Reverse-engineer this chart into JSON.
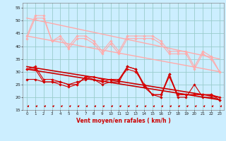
{
  "title": "",
  "xlabel": "Vent moyen/en rafales ( km/h )",
  "xlim": [
    -0.5,
    23.5
  ],
  "ylim": [
    15,
    57
  ],
  "yticks": [
    15,
    20,
    25,
    30,
    35,
    40,
    45,
    50,
    55
  ],
  "xticks": [
    0,
    1,
    2,
    3,
    4,
    5,
    6,
    7,
    8,
    9,
    10,
    11,
    12,
    13,
    14,
    15,
    16,
    17,
    18,
    19,
    20,
    21,
    22,
    23
  ],
  "bg_color": "#cceeff",
  "grid_color": "#99cccc",
  "series": [
    {
      "name": "pink_trend1",
      "color": "#ffaaaa",
      "linewidth": 1.0,
      "marker": null,
      "x": [
        0,
        23
      ],
      "y": [
        44,
        30
      ]
    },
    {
      "name": "pink_trend2",
      "color": "#ffaaaa",
      "linewidth": 1.0,
      "marker": null,
      "x": [
        0,
        23
      ],
      "y": [
        51,
        35
      ]
    },
    {
      "name": "pink_line_markers1",
      "color": "#ffaaaa",
      "linewidth": 0.8,
      "marker": "D",
      "markersize": 1.8,
      "x": [
        0,
        1,
        2,
        3,
        4,
        5,
        6,
        7,
        8,
        9,
        10,
        11,
        12,
        13,
        14,
        15,
        16,
        17,
        18,
        19,
        20,
        21,
        22,
        23
      ],
      "y": [
        44,
        52,
        52,
        42,
        44,
        40,
        44,
        44,
        42,
        38,
        42,
        38,
        44,
        44,
        44,
        44,
        42,
        38,
        38,
        38,
        32,
        38,
        36,
        30
      ]
    },
    {
      "name": "pink_line_markers2",
      "color": "#ffaaaa",
      "linewidth": 0.8,
      "marker": "D",
      "markersize": 1.8,
      "x": [
        0,
        1,
        2,
        3,
        4,
        5,
        6,
        7,
        8,
        9,
        10,
        11,
        12,
        13,
        14,
        15,
        16,
        17,
        18,
        19,
        20,
        21,
        22,
        23
      ],
      "y": [
        43,
        51,
        51,
        42,
        43,
        39,
        43,
        43,
        41,
        37,
        41,
        37,
        43,
        43,
        43,
        43,
        41,
        37,
        37,
        37,
        31,
        37,
        35,
        30
      ]
    },
    {
      "name": "red_trend1",
      "color": "#cc0000",
      "linewidth": 1.2,
      "marker": null,
      "x": [
        0,
        23
      ],
      "y": [
        31,
        19
      ]
    },
    {
      "name": "red_trend2",
      "color": "#cc0000",
      "linewidth": 1.2,
      "marker": null,
      "x": [
        0,
        23
      ],
      "y": [
        32,
        20
      ]
    },
    {
      "name": "red_line_markers1",
      "color": "#dd0000",
      "linewidth": 0.8,
      "marker": "D",
      "markersize": 1.8,
      "x": [
        0,
        1,
        2,
        3,
        4,
        5,
        6,
        7,
        8,
        9,
        10,
        11,
        12,
        13,
        14,
        15,
        16,
        17,
        18,
        19,
        20,
        21,
        22,
        23
      ],
      "y": [
        31,
        32,
        27,
        27,
        26,
        25,
        25,
        28,
        28,
        27,
        27,
        27,
        32,
        31,
        25,
        21,
        21,
        29,
        21,
        21,
        21,
        21,
        21,
        20
      ]
    },
    {
      "name": "red_line_markers2",
      "color": "#dd0000",
      "linewidth": 0.8,
      "marker": "D",
      "markersize": 1.8,
      "x": [
        0,
        1,
        2,
        3,
        4,
        5,
        6,
        7,
        8,
        9,
        10,
        11,
        12,
        13,
        14,
        15,
        16,
        17,
        18,
        19,
        20,
        21,
        22,
        23
      ],
      "y": [
        31,
        31,
        26,
        26,
        25,
        24,
        25,
        28,
        27,
        26,
        27,
        27,
        31,
        30,
        25,
        21,
        21,
        28,
        21,
        21,
        21,
        21,
        21,
        19
      ]
    },
    {
      "name": "red_spiky",
      "color": "#cc0000",
      "linewidth": 0.8,
      "marker": "D",
      "markersize": 1.8,
      "x": [
        0,
        1,
        2,
        3,
        4,
        5,
        6,
        7,
        8,
        9,
        10,
        11,
        12,
        13,
        14,
        15,
        16,
        17,
        18,
        19,
        20,
        21,
        22,
        23
      ],
      "y": [
        27,
        27,
        26,
        26,
        26,
        25,
        26,
        27,
        27,
        25,
        26,
        26,
        32,
        31,
        24,
        21,
        20,
        29,
        20,
        20,
        25,
        20,
        20,
        19
      ]
    }
  ],
  "arrow_color": "#cc0000",
  "xtick_fontsize": 4.0,
  "ytick_fontsize": 4.5,
  "xlabel_fontsize": 5.5
}
